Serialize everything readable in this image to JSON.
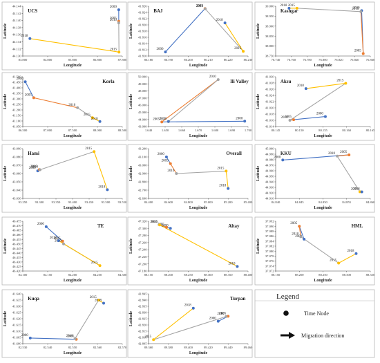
{
  "colors": {
    "y2000": "#4472c4",
    "y2005": "#ed7d31",
    "y2010": "#a5a5a5",
    "y2015": "#ffc000",
    "y2018": "#4472c4",
    "panel_border": "#b8b8b8",
    "axis": "#404040"
  },
  "legend": {
    "title": "Legend",
    "time_node_label": "Time Node",
    "migration_label": "Migration direction"
  },
  "chart_data": [
    {
      "type": "line",
      "title": "UCS",
      "xlabel": "Longitude",
      "ylabel": "Latitude",
      "xlim": [
        83.8,
        88.0
      ],
      "ylim": [
        44.13,
        44.144
      ],
      "xticks": [
        "83.800",
        "84.800",
        "85.800",
        "86.800",
        "87.800"
      ],
      "yticks": [
        "44.130",
        "44.132",
        "44.134",
        "44.136",
        "44.138",
        "44.140",
        "44.142",
        "44.144"
      ],
      "points": [
        {
          "year": "2000",
          "x": 87.85,
          "y": 44.143
        },
        {
          "year": "2005",
          "x": 87.85,
          "y": 44.1398
        },
        {
          "year": "2010",
          "x": 87.85,
          "y": 44.1393
        },
        {
          "year": "2015",
          "x": 87.86,
          "y": 44.1311
        },
        {
          "year": "2018",
          "x": 84.1,
          "y": 44.1349
        }
      ]
    },
    {
      "type": "line",
      "title": "BAJ",
      "xlabel": "Longitude",
      "ylabel": "Latitude",
      "xlim": [
        86.18,
        86.23
      ],
      "ylim": [
        41.81,
        41.827
      ],
      "xticks": [
        "86.180",
        "86.190",
        "86.200",
        "86.210",
        "86.220",
        "86.230"
      ],
      "yticks": [
        "41.810",
        "41.812",
        "41.814",
        "41.816",
        "41.818",
        "41.820",
        "41.822",
        "41.824",
        "41.826"
      ],
      "points": [
        {
          "year": "2000",
          "x": 86.1885,
          "y": 41.8114
        },
        {
          "year": "2005",
          "x": 86.2084,
          "y": 41.8262
        },
        {
          "year": "2010",
          "x": 86.2085,
          "y": 41.8261
        },
        {
          "year": "2015",
          "x": 86.2276,
          "y": 41.8116
        },
        {
          "year": "2018",
          "x": 86.2184,
          "y": 41.8213
        }
      ]
    },
    {
      "type": "line",
      "title": "Kashgar",
      "xlabel": "Longitude",
      "ylabel": "Latitude",
      "xlim": [
        76.74,
        76.86
      ],
      "ylim": [
        38.75,
        39.0
      ],
      "xticks": [
        "76.740",
        "76.760",
        "76.780",
        "76.800",
        "76.820",
        "76.840",
        "76.860"
      ],
      "yticks": [
        "38.750",
        "38.800",
        "38.850",
        "38.900",
        "38.950",
        "39.000"
      ],
      "points": [
        {
          "year": "2000",
          "x": 76.849,
          "y": 38.978
        },
        {
          "year": "2005",
          "x": 76.851,
          "y": 38.762
        },
        {
          "year": "2010",
          "x": 76.848,
          "y": 38.973
        },
        {
          "year": "2015",
          "x": 76.767,
          "y": 38.99
        },
        {
          "year": "2018",
          "x": 76.757,
          "y": 38.99
        }
      ]
    },
    {
      "type": "line",
      "title": "Korla",
      "xlabel": "Longitude",
      "ylabel": "Latitude",
      "xlim": [
        86.5,
        88.5
      ],
      "ylim": [
        41.05,
        41.5
      ],
      "xticks": [
        "86.500",
        "87.000",
        "87.500",
        "88.000",
        "88.500"
      ],
      "yticks": [
        "41.050",
        "41.100",
        "41.150",
        "41.200",
        "41.250",
        "41.300",
        "41.350",
        "41.400",
        "41.450",
        "41.500"
      ],
      "points": [
        {
          "year": "2000",
          "x": 86.55,
          "y": 41.455
        },
        {
          "year": "2005",
          "x": 86.72,
          "y": 41.31
        },
        {
          "year": "2010",
          "x": 87.6,
          "y": 41.22
        },
        {
          "year": "2015",
          "x": 87.9,
          "y": 41.13
        },
        {
          "year": "2018",
          "x": 88.05,
          "y": 41.095
        }
      ]
    },
    {
      "type": "line",
      "title": "Ili Valley",
      "xlabel": "Longitude",
      "ylabel": "Latitude",
      "xlim": [
        1.64,
        1.7
      ],
      "ylim": [
        43.0,
        50.0
      ],
      "xticks": [
        "1.640",
        "1.650",
        "1.660",
        "1.670",
        "1.680",
        "1.690",
        "1.700"
      ],
      "yticks": [
        "43.000",
        "44.000",
        "45.000",
        "46.000",
        "47.000",
        "48.000",
        "49.000",
        "50.000"
      ],
      "points": [
        {
          "year": "2000",
          "x": 1.698,
          "y": 43.75
        },
        {
          "year": "2005",
          "x": 1.648,
          "y": 43.65
        },
        {
          "year": "2010",
          "x": 1.682,
          "y": 49.6
        },
        {
          "year": "2015",
          "x": 1.652,
          "y": 43.7
        },
        {
          "year": "2018",
          "x": 1.652,
          "y": 43.7
        }
      ]
    },
    {
      "type": "line",
      "title": "Aksu",
      "xlabel": "Longitude",
      "ylabel": "Latitude",
      "xlim": [
        80.145,
        80.165
      ],
      "ylim": [
        41.014,
        41.03
      ],
      "xticks": [
        "80.145",
        "80.150",
        "80.155",
        "80.160",
        "80.165"
      ],
      "yticks": [
        "41.014",
        "41.016",
        "41.018",
        "41.020",
        "41.022",
        "41.024",
        "41.026",
        "41.028",
        "41.030"
      ],
      "points": [
        {
          "year": "2000",
          "x": 80.1555,
          "y": 41.0172
        },
        {
          "year": "2005",
          "x": 80.1488,
          "y": 41.0162
        },
        {
          "year": "2010",
          "x": 80.148,
          "y": 41.016
        },
        {
          "year": "2015",
          "x": 80.1598,
          "y": 41.0279
        },
        {
          "year": "2018",
          "x": 80.1514,
          "y": 41.0262
        }
      ]
    },
    {
      "type": "line",
      "title": "Hami",
      "xlabel": "Longitude",
      "ylabel": "Latitude",
      "xlim": [
        93.25,
        93.55
      ],
      "ylim": [
        43.03,
        43.09
      ],
      "xticks": [
        "93.250",
        "93.300",
        "93.350",
        "93.400",
        "93.450",
        "93.500",
        "93.550"
      ],
      "yticks": [
        "43.030",
        "43.040",
        "43.050",
        "43.060",
        "43.070",
        "43.080",
        "43.090"
      ],
      "points": [
        {
          "year": "2000",
          "x": 93.295,
          "y": 43.0632
        },
        {
          "year": "2005",
          "x": 93.3,
          "y": 43.0648
        },
        {
          "year": "2010",
          "x": 93.302,
          "y": 43.0646
        },
        {
          "year": "2015",
          "x": 93.465,
          "y": 43.0865
        },
        {
          "year": "2018",
          "x": 93.505,
          "y": 43.0405
        }
      ]
    },
    {
      "type": "line",
      "title": "Overall",
      "xlabel": "Longitude",
      "ylabel": "Latitude",
      "xlim": [
        84.4,
        85.4
      ],
      "ylim": [
        42.6,
        43.2
      ],
      "xticks": [
        "84.400",
        "84.600",
        "84.800",
        "85.000",
        "85.200",
        "85.400"
      ],
      "yticks": [
        "42.600",
        "42.700",
        "42.800",
        "42.900",
        "43.000",
        "43.100",
        "43.200"
      ],
      "points": [
        {
          "year": "2000",
          "x": 84.58,
          "y": 43.1
        },
        {
          "year": "2005",
          "x": 84.62,
          "y": 43.02
        },
        {
          "year": "2010",
          "x": 84.68,
          "y": 42.9
        },
        {
          "year": "2015",
          "x": 85.18,
          "y": 42.93
        },
        {
          "year": "2018",
          "x": 85.2,
          "y": 42.72
        }
      ]
    },
    {
      "type": "line",
      "title": "KKU",
      "xlabel": "Longitude",
      "ylabel": "Latitude",
      "xlim": [
        84.84,
        84.86
      ],
      "ylim": [
        44.91,
        45.0
      ],
      "xticks": [
        "84.840",
        "84.845",
        "84.850",
        "84.855",
        "84.860"
      ],
      "yticks": [
        "44.910",
        "44.920",
        "44.930",
        "44.940",
        "44.950",
        "44.960",
        "44.970",
        "44.980",
        "44.990",
        "45.000"
      ],
      "points": [
        {
          "year": "2000",
          "x": 84.8415,
          "y": 44.9795
        },
        {
          "year": "2005",
          "x": 84.8555,
          "y": 44.9888
        },
        {
          "year": "2010",
          "x": 84.853,
          "y": 44.9865
        },
        {
          "year": "2015",
          "x": 84.8578,
          "y": 44.922
        },
        {
          "year": "2018",
          "x": 84.8582,
          "y": 44.9218
        }
      ]
    },
    {
      "type": "line",
      "title": "TE",
      "xlabel": "Longitude",
      "ylabel": "Latitude",
      "xlim": [
        84.1,
        84.3
      ],
      "ylim": [
        46.42,
        46.475
      ],
      "xticks": [
        "84.100",
        "84.150",
        "84.200",
        "84.250",
        "84.300"
      ],
      "yticks": [
        "46.420",
        "46.425",
        "46.430",
        "46.435",
        "46.440",
        "46.445",
        "46.450",
        "46.455",
        "46.460",
        "46.465",
        "46.470",
        "46.475"
      ],
      "points": [
        {
          "year": "2000",
          "x": 84.147,
          "y": 46.469
        },
        {
          "year": "2005",
          "x": 84.18,
          "y": 46.453
        },
        {
          "year": "2010",
          "x": 84.182,
          "y": 46.45
        },
        {
          "year": "2015",
          "x": 84.255,
          "y": 46.426
        },
        {
          "year": "2018",
          "x": 84.172,
          "y": 46.4535
        }
      ]
    },
    {
      "type": "line",
      "title": "Altay",
      "xlabel": "Longitude",
      "ylabel": "Latitude",
      "xlim": [
        88.15,
        88.4
      ],
      "ylim": [
        47.18,
        47.32
      ],
      "xticks": [
        "88.150",
        "88.200",
        "88.250",
        "88.300",
        "88.350",
        "88.400"
      ],
      "yticks": [
        "47.180",
        "47.200",
        "47.220",
        "47.240",
        "47.260",
        "47.280",
        "47.300",
        "47.320"
      ],
      "points": [
        {
          "year": "2000",
          "x": 88.205,
          "y": 47.3
        },
        {
          "year": "2005",
          "x": 88.195,
          "y": 47.303
        },
        {
          "year": "2010",
          "x": 88.177,
          "y": 47.3105
        },
        {
          "year": "2015",
          "x": 88.178,
          "y": 47.3098
        },
        {
          "year": "2018",
          "x": 88.373,
          "y": 47.193
        }
      ]
    },
    {
      "type": "line",
      "title": "HML",
      "xlabel": "Longitude",
      "ylabel": "Latitude",
      "xlim": [
        88.15,
        88.35
      ],
      "ylim": [
        37.072,
        37.092
      ],
      "xticks": [
        "88.150",
        "88.200",
        "88.250",
        "88.300",
        "88.350"
      ],
      "yticks": [
        "37.072",
        "37.074",
        "37.076",
        "37.078",
        "37.080",
        "37.082",
        "37.084",
        "37.086",
        "37.088",
        "37.090",
        "37.092"
      ],
      "points": [
        {
          "year": "2000",
          "x": 88.21,
          "y": 37.0848
        },
        {
          "year": "2005",
          "x": 88.2,
          "y": 37.09
        },
        {
          "year": "2010",
          "x": 88.203,
          "y": 37.0858
        },
        {
          "year": "2015",
          "x": 88.283,
          "y": 37.0752
        },
        {
          "year": "2018",
          "x": 88.32,
          "y": 37.079
        }
      ]
    },
    {
      "type": "line",
      "title": "Kuqa",
      "xlabel": "Longitude",
      "ylabel": "Latitude",
      "xlim": [
        82.53,
        82.57
      ],
      "ylim": [
        41.6,
        41.64
      ],
      "xticks": [
        "82.530",
        "82.540",
        "82.550",
        "82.560",
        "82.570"
      ],
      "yticks": [
        "41.600",
        "41.605",
        "41.610",
        "41.615",
        "41.620",
        "41.625",
        "41.630",
        "41.635",
        "41.640"
      ],
      "points": [
        {
          "year": "2000",
          "x": 82.533,
          "y": 41.6045
        },
        {
          "year": "2005",
          "x": 82.5515,
          "y": 41.6035
        },
        {
          "year": "2010",
          "x": 82.551,
          "y": 41.604
        },
        {
          "year": "2015",
          "x": 82.5605,
          "y": 41.635
        },
        {
          "year": "2018",
          "x": 82.5625,
          "y": 41.6325
        }
      ]
    },
    {
      "type": "line",
      "title": "Turpan",
      "xlabel": "Longitude",
      "ylabel": "Latitude",
      "xlim": [
        89.36,
        89.46
      ],
      "ylim": [
        42.805,
        42.845
      ],
      "xticks": [
        "89.360",
        "89.380",
        "89.400",
        "89.420",
        "89.440",
        "89.460"
      ],
      "yticks": [
        "42.805",
        "42.810",
        "42.815",
        "42.820",
        "42.825",
        "42.830",
        "42.835",
        "42.840",
        "42.845"
      ],
      "points": [
        {
          "year": "2000",
          "x": 89.43,
          "y": 42.823
        },
        {
          "year": "2005",
          "x": 89.44,
          "y": 42.827
        },
        {
          "year": "2010",
          "x": 89.438,
          "y": 42.8268
        },
        {
          "year": "2015",
          "x": 89.365,
          "y": 42.8082
        },
        {
          "year": "2018",
          "x": 89.405,
          "y": 42.8335
        }
      ]
    }
  ]
}
